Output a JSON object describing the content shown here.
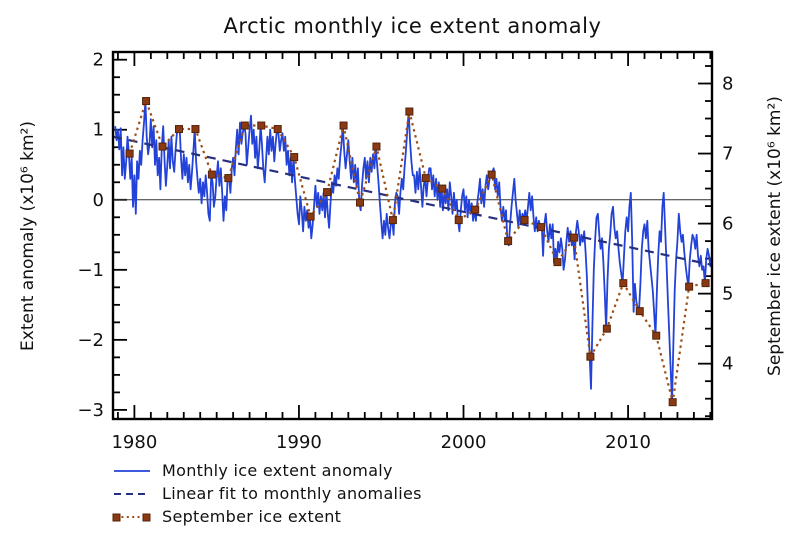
{
  "title": "Arctic monthly ice extent anomaly",
  "axes": {
    "left_label": "Extent anomaly (x10⁶ km²)",
    "right_label": "September ice extent (x10⁶ km²)"
  },
  "legend": [
    {
      "label": "Monthly ice extent anomaly",
      "style": "solid",
      "color": "#2342d8"
    },
    {
      "label": "Linear fit to monthly anomalies",
      "style": "dashed",
      "color": "#27307f"
    },
    {
      "label": "September ice extent",
      "style": "dotted-markers",
      "color": "#9c4f16",
      "marker_color": "#8a3a12"
    }
  ],
  "chart_data": {
    "type": "line",
    "title": "Arctic monthly ice extent anomaly",
    "xlabel": "",
    "ylabel_left": "Extent anomaly (x10⁶ km²)",
    "ylabel_right": "September ice extent (x10⁶ km²)",
    "grid": false,
    "legend_position": "below-left",
    "x_range": [
      1978.7,
      2015.1
    ],
    "y_left_range": [
      -3.13,
      2.11
    ],
    "y_right_range": [
      3.25,
      8.25
    ],
    "right_axis_offset": 6.34,
    "x_major_values": [
      1980,
      1990,
      2000,
      2010
    ],
    "x_major_labels": [
      "1980",
      "1990",
      "2000",
      "2010"
    ],
    "x_minor_step_years": 1,
    "y_left_major_values": [
      2,
      1,
      0,
      -1,
      -2,
      -3
    ],
    "y_left_major_labels": [
      "2",
      "1",
      "0",
      "−1",
      "−2",
      "−3"
    ],
    "y_right_major_values": [
      8,
      7,
      6,
      5,
      4
    ],
    "y_right_major_labels": [
      "8",
      "7",
      "6",
      "5",
      "4"
    ],
    "y_minor_step": 0.25,
    "zero_line": 0,
    "series": [
      {
        "name": "Monthly ice extent anomaly",
        "axis": "left",
        "color": "#2342d8",
        "style": "solid",
        "note": "Monthly anomaly values approximately digitized from figure; x = year + month/12, starting November 1978",
        "start_year": 1978,
        "values_by_year": [
          [
            null,
            null,
            null,
            null,
            null,
            null,
            null,
            null,
            null,
            null,
            1.05,
            0.85
          ],
          [
            1.0,
            0.72,
            1.02,
            0.35,
            0.75,
            0.3,
            0.55,
            0.9,
            0.66,
            0.3,
            0.6,
            -0.1
          ],
          [
            0.35,
            -0.2,
            0.55,
            0.3,
            0.7,
            0.5,
            0.85,
            1.1,
            1.41,
            0.9,
            0.65,
            0.8
          ],
          [
            1.15,
            0.75,
            1.05,
            0.5,
            0.85,
            0.35,
            0.6,
            0.15,
            0.76,
            1.05,
            0.55,
            0.2
          ],
          [
            0.5,
            0.85,
            0.45,
            0.9,
            0.55,
            0.4,
            0.7,
            0.95,
            1.01,
            1.05,
            0.6,
            0.3
          ],
          [
            0.65,
            0.35,
            0.6,
            0.25,
            0.5,
            0.15,
            0.4,
            0.7,
            1.01,
            0.55,
            0.3,
            0.1
          ],
          [
            0.3,
            -0.05,
            0.25,
            0.05,
            0.35,
            0.1,
            -0.2,
            -0.3,
            0.36,
            0.25,
            -0.1,
            0.05
          ],
          [
            0.35,
            0.55,
            0.2,
            0.45,
            0.1,
            -0.3,
            0.05,
            -0.15,
            0.31,
            0.35,
            0.1,
            0.45
          ],
          [
            0.6,
            0.35,
            0.75,
            1.0,
            0.65,
            1.1,
            0.8,
            0.95,
            1.06,
            0.95,
            0.5,
            0.75
          ],
          [
            1.0,
            1.2,
            0.8,
            1.0,
            0.6,
            0.9,
            0.45,
            0.7,
            1.06,
            0.8,
            0.45,
            0.25
          ],
          [
            0.55,
            0.9,
            0.65,
            1.0,
            0.7,
            0.9,
            0.55,
            0.8,
            1.01,
            0.95,
            0.7,
            0.85
          ],
          [
            0.95,
            0.7,
            0.9,
            0.5,
            0.7,
            0.35,
            0.6,
            0.25,
            0.61,
            0.3,
            0.05,
            -0.2
          ],
          [
            -0.35,
            0.05,
            -0.15,
            -0.45,
            -0.1,
            -0.3,
            -0.15,
            -0.4,
            -0.24,
            -0.55,
            -0.35,
            -0.1
          ],
          [
            0.2,
            -0.1,
            0.1,
            -0.2,
            0.05,
            -0.15,
            0.1,
            -0.25,
            0.11,
            -0.2,
            -0.4,
            -0.05
          ],
          [
            0.25,
            0.1,
            0.35,
            0.2,
            0.45,
            0.3,
            0.6,
            0.8,
            1.06,
            0.7,
            0.45,
            0.65
          ],
          [
            0.85,
            0.55,
            0.3,
            0.6,
            0.25,
            0.5,
            0.2,
            0.45,
            -0.04,
            -0.15,
            0.2,
            0.45
          ],
          [
            0.6,
            0.3,
            0.55,
            0.25,
            0.6,
            0.4,
            0.65,
            0.45,
            0.76,
            0.5,
            0.25,
            -0.05
          ],
          [
            -0.3,
            -0.55,
            -0.3,
            -0.5,
            -0.2,
            -0.4,
            -0.55,
            -0.35,
            -0.29,
            -0.5,
            -0.05,
            0.1
          ],
          [
            0.05,
            -0.2,
            0.1,
            0.3,
            0.15,
            0.45,
            0.7,
            1.0,
            1.26,
            0.85,
            0.55,
            0.35
          ],
          [
            0.35,
            0.1,
            0.4,
            0.15,
            0.45,
            0.2,
            -0.1,
            0.2,
            0.31,
            0.05,
            0.3,
            0.45
          ],
          [
            0.45,
            0.15,
            0.35,
            0.05,
            0.3,
            0.0,
            0.25,
            -0.1,
            0.16,
            -0.15,
            0.1,
            -0.05
          ],
          [
            0.15,
            -0.15,
            0.25,
            0.05,
            -0.2,
            0.1,
            -0.15,
            0.0,
            -0.29,
            -0.45,
            -0.15,
            0.05
          ],
          [
            0.15,
            -0.15,
            0.05,
            -0.25,
            0.0,
            -0.2,
            -0.05,
            -0.3,
            -0.14,
            -0.3,
            -0.05,
            0.1
          ],
          [
            0.3,
            -0.05,
            0.15,
            -0.1,
            0.2,
            0.35,
            0.15,
            0.3,
            0.36,
            0.4,
            0.45,
            0.15
          ],
          [
            0.3,
            0.05,
            0.25,
            -0.1,
            -0.3,
            -0.1,
            -0.3,
            -0.15,
            -0.59,
            -0.65,
            -0.35,
            -0.1
          ],
          [
            0.1,
            0.3,
            0.0,
            -0.2,
            -0.4,
            -0.15,
            -0.35,
            -0.2,
            -0.29,
            -0.15,
            -0.3,
            -0.1
          ],
          [
            0.1,
            -0.15,
            0.05,
            -0.25,
            -0.45,
            -0.25,
            -0.45,
            -0.3,
            -0.39,
            -0.35,
            -0.8,
            -0.35
          ],
          [
            -0.2,
            -0.45,
            -0.6,
            -0.35,
            -0.55,
            -0.35,
            -0.9,
            -0.7,
            -0.89,
            -0.6,
            -0.75,
            -0.55
          ],
          [
            -0.7,
            -1.0,
            -0.85,
            -0.6,
            -0.4,
            -0.6,
            -0.45,
            -0.65,
            -0.54,
            -0.85,
            -0.45,
            -0.3
          ],
          [
            -0.45,
            -0.65,
            -0.5,
            -0.6,
            -0.45,
            -0.75,
            -1.1,
            -1.7,
            -2.24,
            -2.7,
            -1.8,
            -1.0
          ],
          [
            -0.55,
            -0.25,
            -0.2,
            -0.5,
            -0.7,
            -0.55,
            -0.9,
            -1.35,
            -1.84,
            -1.15,
            -0.7,
            -0.5
          ],
          [
            -0.2,
            -0.1,
            -0.4,
            -0.55,
            -0.45,
            -0.7,
            -0.9,
            -1.05,
            -1.19,
            -0.8,
            -0.45,
            -0.25
          ],
          [
            -0.45,
            -0.1,
            0.1,
            -0.6,
            -1.6,
            -1.2,
            -1.45,
            -1.55,
            -1.59,
            -1.2,
            -0.7,
            -0.45
          ],
          [
            -0.35,
            -0.55,
            -0.3,
            -0.7,
            -0.9,
            -1.1,
            -1.3,
            -1.6,
            -1.94,
            -1.3,
            -0.8,
            -0.45
          ],
          [
            -0.6,
            -0.1,
            0.1,
            -0.4,
            -0.9,
            -1.4,
            -1.9,
            -2.4,
            -2.89,
            -2.1,
            -1.3,
            -0.85
          ],
          [
            -0.6,
            -0.2,
            -0.45,
            -0.6,
            -0.5,
            -0.75,
            -0.95,
            -1.1,
            -1.24,
            -0.85,
            -0.65,
            -0.5
          ],
          [
            -0.55,
            -0.7,
            -0.5,
            -0.8,
            -0.95,
            -0.8,
            -1.0,
            -0.95,
            -1.19,
            -0.85,
            -0.7,
            -0.8
          ],
          [
            -0.95,
            -0.8,
            -1.0,
            -0.9
          ]
        ]
      },
      {
        "name": "Linear fit to monthly anomalies",
        "axis": "left",
        "color": "#27307f",
        "style": "dashed",
        "x": [
          1978.7,
          2015.1
        ],
        "y": [
          0.9,
          -0.93
        ],
        "slope_per_year": -0.05
      },
      {
        "name": "September ice extent",
        "axis": "right",
        "color": "#9c4f16",
        "marker_color": "#8a3a12",
        "style": "dotted-markers",
        "x_month_offset": 0.71,
        "years": [
          1979,
          1980,
          1981,
          1982,
          1983,
          1984,
          1985,
          1986,
          1987,
          1988,
          1989,
          1990,
          1991,
          1992,
          1993,
          1994,
          1995,
          1996,
          1997,
          1998,
          1999,
          2000,
          2001,
          2002,
          2003,
          2004,
          2005,
          2006,
          2007,
          2008,
          2009,
          2010,
          2011,
          2012,
          2013,
          2014
        ],
        "extent": [
          7.0,
          7.75,
          7.1,
          7.35,
          7.35,
          6.7,
          6.65,
          7.4,
          7.4,
          7.35,
          6.95,
          6.1,
          6.45,
          7.4,
          6.3,
          7.1,
          6.05,
          7.6,
          6.65,
          6.5,
          6.05,
          6.2,
          6.7,
          5.75,
          6.05,
          5.95,
          5.45,
          5.8,
          4.1,
          4.5,
          5.15,
          4.75,
          4.4,
          3.45,
          5.1,
          5.15
        ]
      }
    ]
  }
}
